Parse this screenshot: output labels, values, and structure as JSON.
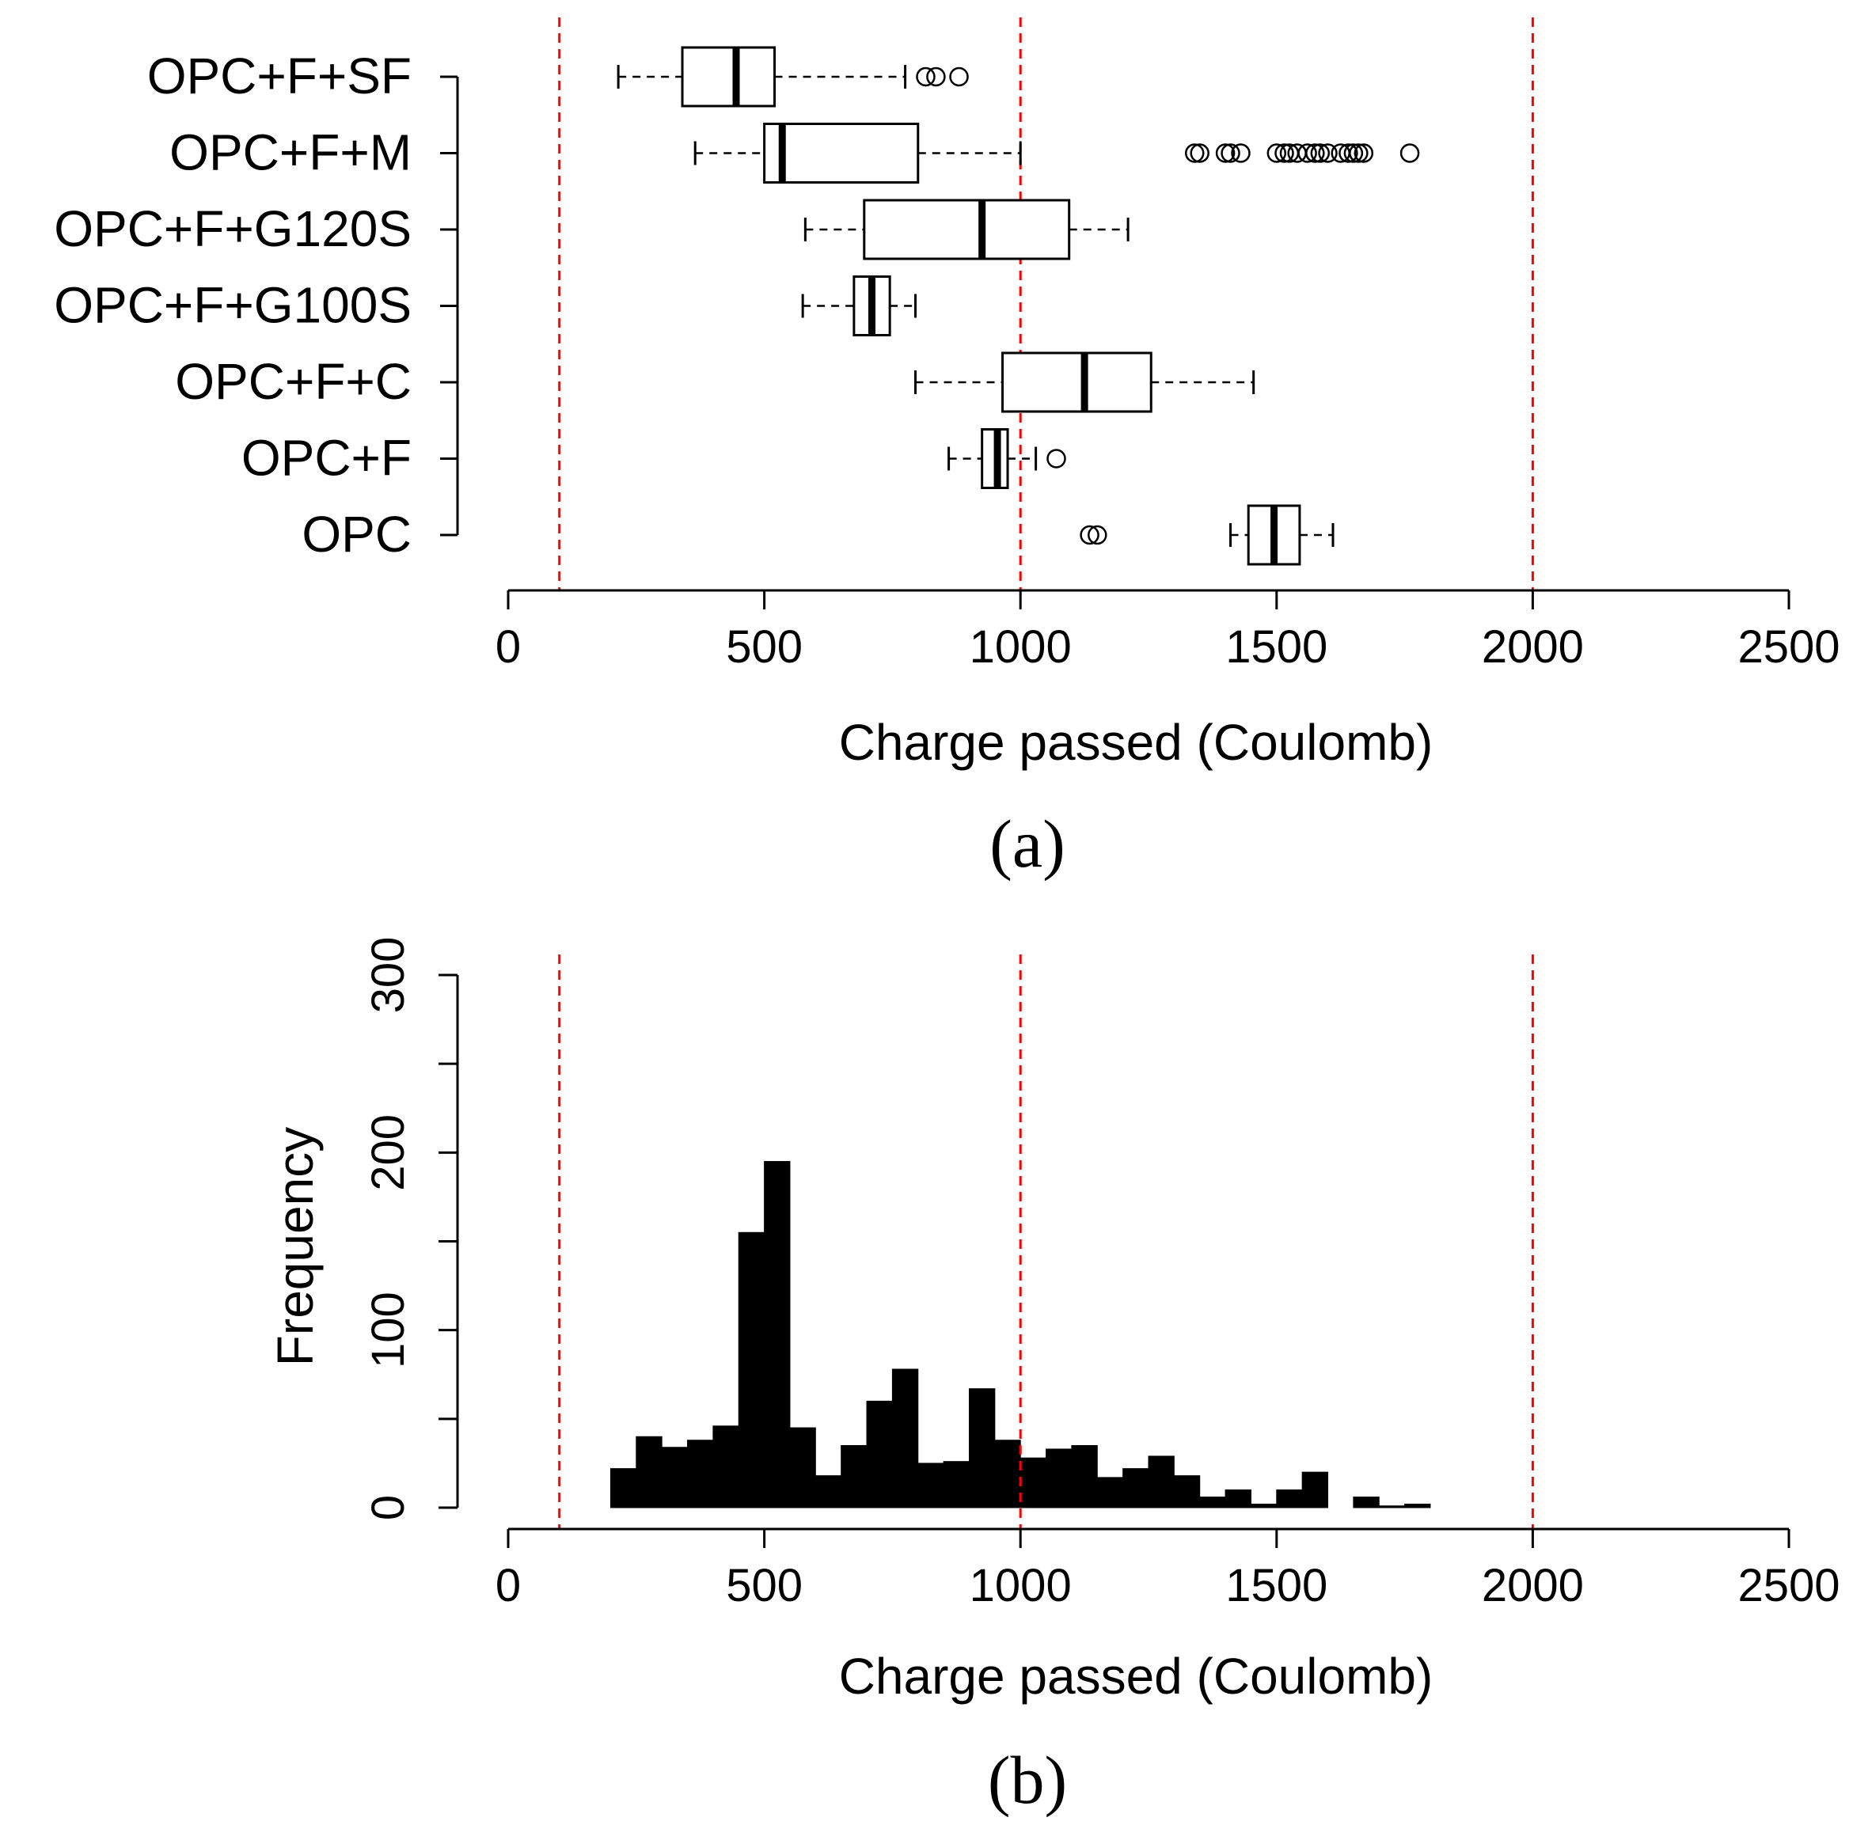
{
  "chart_data": [
    {
      "type": "boxplot",
      "panel": "(a)",
      "orientation": "horizontal",
      "xlabel": "Charge passed (Coulomb)",
      "xlim": [
        0,
        2500
      ],
      "xticks": [
        0,
        500,
        1000,
        1500,
        2000,
        2500
      ],
      "reference_lines": [
        100,
        1000,
        2000
      ],
      "reference_line_color": "#ff0000",
      "groups": [
        {
          "name": "OPC+F+SF",
          "whisker_low": 215,
          "q1": 340,
          "median": 445,
          "q3": 520,
          "whisker_high": 775,
          "outliers": [
            815,
            835,
            880
          ]
        },
        {
          "name": "OPC+F+M",
          "whisker_low": 365,
          "q1": 500,
          "median": 535,
          "q3": 800,
          "whisker_high": 1000,
          "outliers": [
            1340,
            1350,
            1400,
            1410,
            1430,
            1500,
            1515,
            1525,
            1540,
            1560,
            1575,
            1585,
            1600,
            1625,
            1640,
            1650,
            1660,
            1670,
            1760
          ]
        },
        {
          "name": "OPC+F+G120S",
          "whisker_low": 580,
          "q1": 695,
          "median": 925,
          "q3": 1095,
          "whisker_high": 1210,
          "outliers": []
        },
        {
          "name": "OPC+F+G100S",
          "whisker_low": 575,
          "q1": 675,
          "median": 710,
          "q3": 745,
          "whisker_high": 795,
          "outliers": []
        },
        {
          "name": "OPC+F+C",
          "whisker_low": 795,
          "q1": 965,
          "median": 1125,
          "q3": 1255,
          "whisker_high": 1455,
          "outliers": []
        },
        {
          "name": "OPC+F",
          "whisker_low": 860,
          "q1": 925,
          "median": 955,
          "q3": 975,
          "whisker_high": 1030,
          "outliers": [
            1070
          ]
        },
        {
          "name": "OPC",
          "whisker_low": 1410,
          "q1": 1445,
          "median": 1495,
          "q3": 1545,
          "whisker_high": 1610,
          "outliers": [
            1135,
            1150
          ]
        }
      ]
    },
    {
      "type": "histogram",
      "panel": "(b)",
      "xlabel": "Charge passed (Coulomb)",
      "ylabel": "Frequency",
      "xlim": [
        0,
        2500
      ],
      "ylim": [
        0,
        300
      ],
      "xticks": [
        0,
        500,
        1000,
        1500,
        2000,
        2500
      ],
      "yticks": [
        0,
        100,
        200,
        300
      ],
      "reference_lines": [
        100,
        1000,
        2000
      ],
      "reference_line_color": "#ff0000",
      "bar_color": "#000000",
      "bin_width": 50,
      "bin_starts": [
        200,
        250,
        300,
        350,
        400,
        450,
        500,
        550,
        600,
        650,
        700,
        750,
        800,
        850,
        900,
        950,
        1000,
        1050,
        1100,
        1150,
        1200,
        1250,
        1300,
        1350,
        1400,
        1450,
        1500,
        1550,
        1600,
        1650,
        1700,
        1750
      ],
      "frequencies": [
        22,
        40,
        34,
        38,
        46,
        155,
        195,
        45,
        18,
        35,
        60,
        78,
        25,
        26,
        67,
        38,
        28,
        33,
        35,
        17,
        22,
        29,
        18,
        6,
        10,
        2,
        10,
        20,
        0,
        6,
        1,
        2
      ]
    }
  ],
  "captions": {
    "a": "(a)",
    "b": "(b)"
  }
}
